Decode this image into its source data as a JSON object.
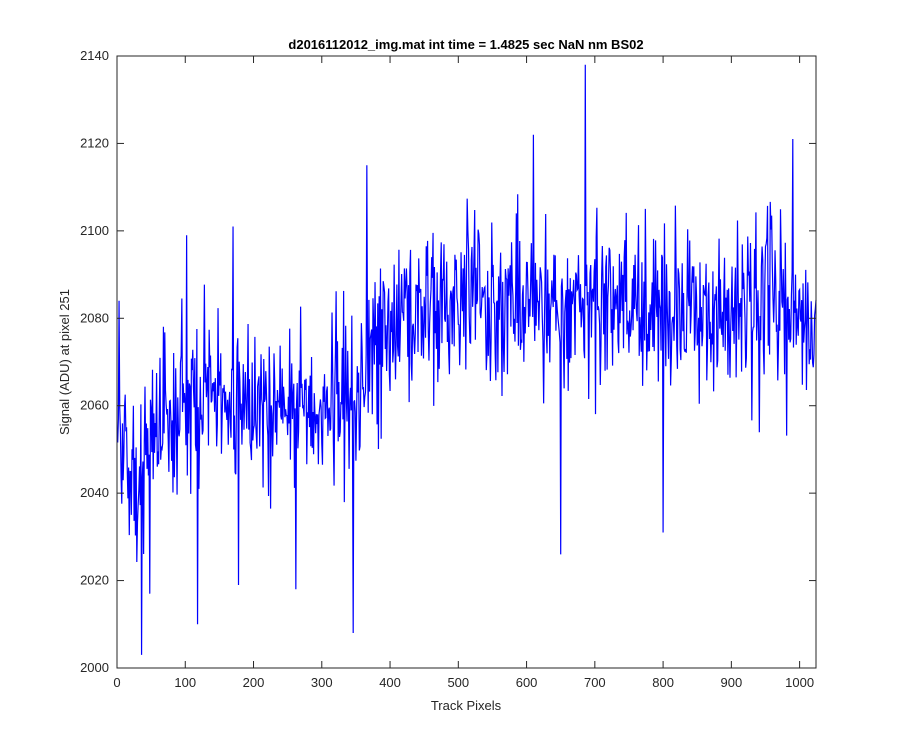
{
  "chart_data": {
    "type": "line",
    "title": "d2016112012_img.mat int time = 1.4825 sec  NaN nm BS02",
    "xlabel": "Track Pixels",
    "ylabel": "Signal (ADU) at pixel 251",
    "xlim": [
      0,
      1024
    ],
    "ylim": [
      2000,
      2140
    ],
    "xticks": [
      0,
      100,
      200,
      300,
      400,
      500,
      600,
      700,
      800,
      900,
      1000
    ],
    "yticks": [
      2000,
      2020,
      2040,
      2060,
      2080,
      2100,
      2120,
      2140
    ],
    "grid": false,
    "legend": "none",
    "series": [
      {
        "color": "#0000ff",
        "x": [
          1,
          5,
          10,
          15,
          20,
          25,
          30,
          35,
          40,
          45,
          50,
          55,
          60,
          65,
          70,
          75,
          80,
          85,
          90,
          95,
          100,
          110,
          120,
          130,
          140,
          150,
          160,
          170,
          180,
          190,
          200,
          210,
          220,
          230,
          240,
          250,
          260,
          270,
          280,
          290,
          300,
          310,
          320,
          330,
          340,
          350,
          360,
          370,
          380,
          390,
          400,
          420,
          440,
          460,
          480,
          500,
          520,
          540,
          560,
          580,
          600,
          620,
          640,
          660,
          680,
          700,
          720,
          740,
          760,
          780,
          800,
          820,
          840,
          860,
          880,
          900,
          920,
          940,
          960,
          980,
          1000,
          1010,
          1024
        ],
        "y": [
          2052,
          2050,
          2048,
          2047,
          2046,
          2046,
          2046,
          2045,
          2047,
          2050,
          2051,
          2052,
          2053,
          2055,
          2057,
          2058,
          2057,
          2056,
          2058,
          2059,
          2060,
          2061,
          2062,
          2061,
          2063,
          2062,
          2063,
          2062,
          2061,
          2061,
          2062,
          2061,
          2060,
          2059,
          2060,
          2061,
          2060,
          2061,
          2061,
          2062,
          2061,
          2060,
          2061,
          2062,
          2062,
          2061,
          2065,
          2072,
          2075,
          2078,
          2080,
          2082,
          2083,
          2084,
          2085,
          2085,
          2085,
          2084,
          2084,
          2083,
          2084,
          2083,
          2084,
          2083,
          2083,
          2084,
          2084,
          2083,
          2084,
          2083,
          2083,
          2082,
          2082,
          2082,
          2081,
          2081,
          2082,
          2081,
          2082,
          2081,
          2081,
          2080,
          2080
        ]
      }
    ],
    "noise_amplitude": 13,
    "spikes": [
      {
        "x": 3,
        "y": 2084
      },
      {
        "x": 36,
        "y": 2003
      },
      {
        "x": 48,
        "y": 2017
      },
      {
        "x": 102,
        "y": 2099
      },
      {
        "x": 118,
        "y": 2010
      },
      {
        "x": 170,
        "y": 2101
      },
      {
        "x": 178,
        "y": 2019
      },
      {
        "x": 262,
        "y": 2018
      },
      {
        "x": 346,
        "y": 2008
      },
      {
        "x": 366,
        "y": 2115
      },
      {
        "x": 610,
        "y": 2122
      },
      {
        "x": 650,
        "y": 2026
      },
      {
        "x": 686,
        "y": 2138
      },
      {
        "x": 800,
        "y": 2031
      },
      {
        "x": 990,
        "y": 2121
      }
    ]
  }
}
